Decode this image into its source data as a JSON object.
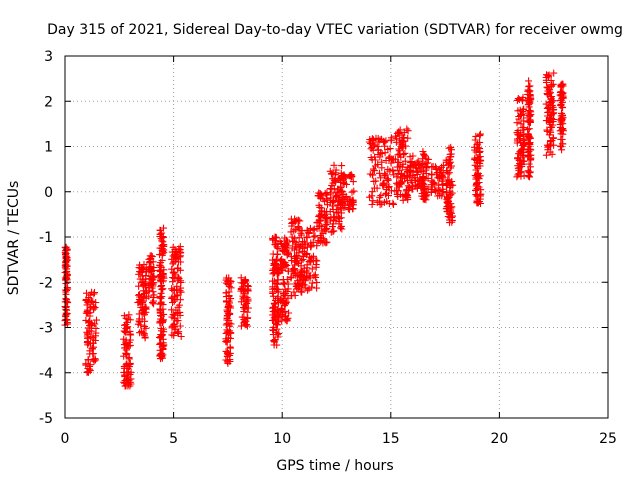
{
  "chart_data": {
    "type": "scatter",
    "title": "Day 315 of 2021, Sidereal Day-to-day VTEC variation (SDTVAR) for receiver owmg",
    "xlabel": "GPS time / hours",
    "ylabel": "SDTVAR / TECUs",
    "xlim": [
      0,
      25
    ],
    "ylim": [
      -5,
      3
    ],
    "x_ticks": [
      0,
      5,
      10,
      15,
      20,
      25
    ],
    "y_ticks": [
      -5,
      -4,
      -3,
      -2,
      -1,
      0,
      1,
      2,
      3
    ],
    "grid": true,
    "marker": "+",
    "color": "#ff0000",
    "series": [
      {
        "name": "SDTVAR",
        "clusters": [
          {
            "x": [
              0.0,
              0.12
            ],
            "y": [
              -3.1,
              -1.2
            ]
          },
          {
            "x": [
              0.95,
              1.45
            ],
            "y": [
              -4.0,
              -2.2
            ]
          },
          {
            "x": [
              2.7,
              3.05
            ],
            "y": [
              -4.3,
              -2.7
            ]
          },
          {
            "x": [
              3.35,
              3.75
            ],
            "y": [
              -3.3,
              -1.6
            ]
          },
          {
            "x": [
              3.85,
              4.1
            ],
            "y": [
              -2.5,
              -1.4
            ]
          },
          {
            "x": [
              4.35,
              4.55
            ],
            "y": [
              -3.7,
              -0.8
            ]
          },
          {
            "x": [
              4.9,
              5.35
            ],
            "y": [
              -3.2,
              -1.2
            ]
          },
          {
            "x": [
              7.4,
              7.65
            ],
            "y": [
              -3.8,
              -1.9
            ]
          },
          {
            "x": [
              8.1,
              8.45
            ],
            "y": [
              -3.0,
              -1.9
            ]
          },
          {
            "x": [
              9.55,
              9.85
            ],
            "y": [
              -3.4,
              -1.0
            ]
          },
          {
            "x": [
              9.9,
              10.3
            ],
            "y": [
              -2.9,
              -1.0
            ]
          },
          {
            "x": [
              10.4,
              10.9
            ],
            "y": [
              -2.3,
              -0.6
            ]
          },
          {
            "x": [
              10.9,
              11.6
            ],
            "y": [
              -2.2,
              -0.8
            ]
          },
          {
            "x": [
              11.6,
              12.1
            ],
            "y": [
              -1.2,
              0.0
            ]
          },
          {
            "x": [
              12.2,
              12.75
            ],
            "y": [
              -0.9,
              0.6
            ]
          },
          {
            "x": [
              12.75,
              13.3
            ],
            "y": [
              -0.4,
              0.4
            ]
          },
          {
            "x": [
              14.0,
              15.2
            ],
            "y": [
              -0.3,
              1.2
            ]
          },
          {
            "x": [
              15.2,
              15.85
            ],
            "y": [
              -0.2,
              1.4
            ]
          },
          {
            "x": [
              15.85,
              16.35
            ],
            "y": [
              0.0,
              0.8
            ]
          },
          {
            "x": [
              16.4,
              16.75
            ],
            "y": [
              -0.2,
              0.9
            ]
          },
          {
            "x": [
              16.85,
              17.45
            ],
            "y": [
              -0.1,
              0.6
            ]
          },
          {
            "x": [
              17.55,
              17.85
            ],
            "y": [
              -0.7,
              1.0
            ]
          },
          {
            "x": [
              18.85,
              19.15
            ],
            "y": [
              -0.3,
              1.3
            ]
          },
          {
            "x": [
              20.8,
              21.15
            ],
            "y": [
              0.3,
              2.1
            ]
          },
          {
            "x": [
              21.3,
              21.45
            ],
            "y": [
              0.3,
              2.45
            ]
          },
          {
            "x": [
              22.15,
              22.5
            ],
            "y": [
              0.75,
              2.65
            ]
          },
          {
            "x": [
              22.8,
              22.95
            ],
            "y": [
              0.9,
              2.4
            ]
          }
        ]
      }
    ]
  }
}
